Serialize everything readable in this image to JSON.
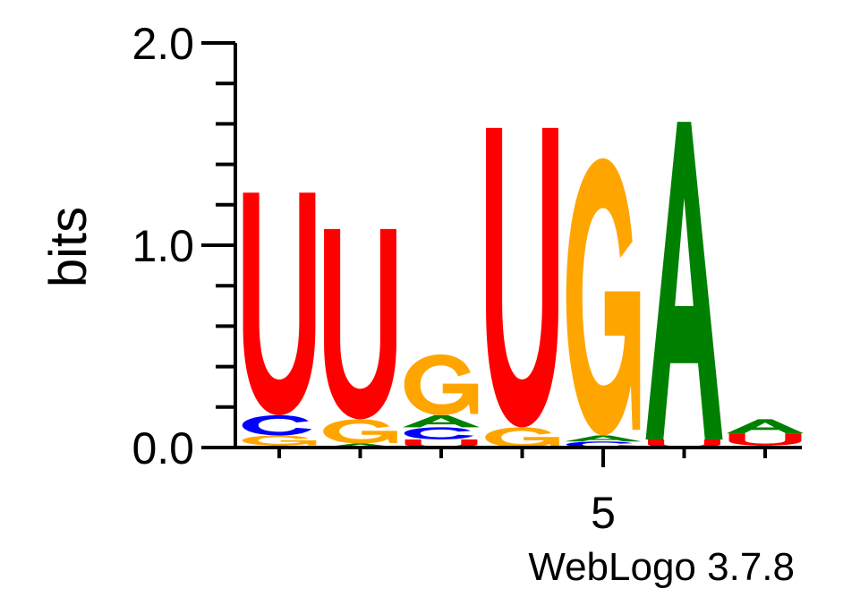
{
  "chart_data": {
    "type": "sequence-logo",
    "ylabel": "bits",
    "ylim": [
      0,
      2
    ],
    "y_ticks": [
      {
        "value": 0,
        "label": "0.0"
      },
      {
        "value": 1,
        "label": "1.0"
      },
      {
        "value": 2,
        "label": "2.0"
      }
    ],
    "x_ticks": [
      {
        "position": 5,
        "label": "5"
      }
    ],
    "credit": "WebLogo 3.7.8",
    "colors": {
      "A": "#008000",
      "C": "#0000ff",
      "G": "#ffa500",
      "U": "#ff0000"
    },
    "positions": [
      {
        "position": 1,
        "stack": [
          {
            "letter": "A",
            "bits": 0.01
          },
          {
            "letter": "G",
            "bits": 0.05
          },
          {
            "letter": "C",
            "bits": 0.1
          },
          {
            "letter": "U",
            "bits": 1.1
          }
        ]
      },
      {
        "position": 2,
        "stack": [
          {
            "letter": "A",
            "bits": 0.02
          },
          {
            "letter": "G",
            "bits": 0.12
          },
          {
            "letter": "U",
            "bits": 0.94
          }
        ]
      },
      {
        "position": 3,
        "stack": [
          {
            "letter": "U",
            "bits": 0.04
          },
          {
            "letter": "C",
            "bits": 0.06
          },
          {
            "letter": "A",
            "bits": 0.06
          },
          {
            "letter": "G",
            "bits": 0.3
          }
        ]
      },
      {
        "position": 4,
        "stack": [
          {
            "letter": "G",
            "bits": 0.1
          },
          {
            "letter": "U",
            "bits": 1.48
          }
        ]
      },
      {
        "position": 5,
        "stack": [
          {
            "letter": "C",
            "bits": 0.03
          },
          {
            "letter": "A",
            "bits": 0.03
          },
          {
            "letter": "G",
            "bits": 1.37
          }
        ]
      },
      {
        "position": 6,
        "stack": [
          {
            "letter": "U",
            "bits": 0.04
          },
          {
            "letter": "A",
            "bits": 1.57
          }
        ]
      },
      {
        "position": 7,
        "stack": [
          {
            "letter": "A",
            "bits": 0.01
          },
          {
            "letter": "U",
            "bits": 0.06
          },
          {
            "letter": "A",
            "bits": 0.07
          }
        ]
      }
    ]
  }
}
